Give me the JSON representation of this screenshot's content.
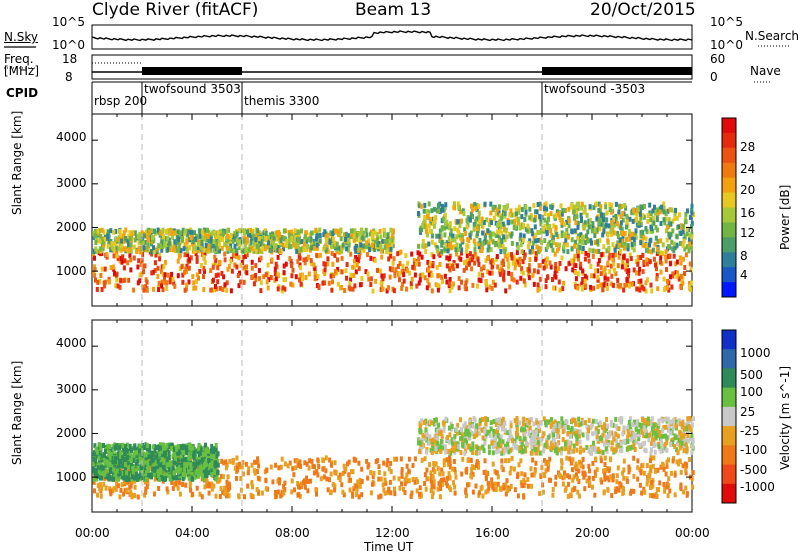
{
  "header": {
    "station": "Clyde River (fitACF)",
    "beam": "Beam 13",
    "date": "20/Oct/2015"
  },
  "status_panel": {
    "left_top_label": "N.Sky",
    "left_top_ticks": [
      "10^5",
      "10^0"
    ],
    "right_top_label": "N.Search",
    "right_top_ticks": [
      "10^5",
      "10^0"
    ],
    "freq_label_1": "Freq.",
    "freq_label_2": "[MHz]",
    "freq_ticks": [
      "18",
      "8"
    ],
    "nave_label": "Nave",
    "nave_ticks": [
      "60",
      "0"
    ],
    "cpid_label": "CPID",
    "cpid_entries": [
      {
        "name": "rbsp 200",
        "start_hour": 0
      },
      {
        "name": "twofsound 3503",
        "start_hour": 2
      },
      {
        "name": "themis 3300",
        "start_hour": 6
      },
      {
        "name": "twofsound -3503",
        "start_hour": 18
      }
    ]
  },
  "chart_data": [
    {
      "type": "heatmap",
      "title": "",
      "xlabel": "",
      "ylabel": "Slant Range [km]",
      "x_range_hours": [
        0,
        24
      ],
      "ylim": [
        200,
        4600
      ],
      "y_ticks": [
        "1000",
        "2000",
        "3000",
        "4000"
      ],
      "colorbar_label": "Power [dB]",
      "colorbar_ticks": [
        "4",
        "8",
        "12",
        "16",
        "20",
        "24",
        "28"
      ],
      "colorbar_colors": [
        "#0018ff",
        "#1a56c8",
        "#2f7f9a",
        "#4c9e68",
        "#73b544",
        "#a6c93a",
        "#e6c820",
        "#f3a20e",
        "#f07a10",
        "#ec5212",
        "#e62a0e",
        "#e00a0a"
      ],
      "echo_bands": [
        {
          "from_hour": 0,
          "to_hour": 24,
          "range_km": [
            600,
            1500
          ],
          "level": "high"
        },
        {
          "from_hour": 0,
          "to_hour": 12,
          "range_km": [
            1500,
            2000
          ],
          "level": "medium"
        },
        {
          "from_hour": 13,
          "to_hour": 24,
          "range_km": [
            1500,
            2600
          ],
          "level": "medium"
        }
      ]
    },
    {
      "type": "heatmap",
      "title": "",
      "xlabel": "Time UT",
      "ylabel": "Slant Range [km]",
      "x_range_hours": [
        0,
        24
      ],
      "x_ticks": [
        "00:00",
        "04:00",
        "08:00",
        "12:00",
        "16:00",
        "20:00",
        "00:00"
      ],
      "ylim": [
        200,
        4600
      ],
      "y_ticks": [
        "1000",
        "2000",
        "3000",
        "4000"
      ],
      "colorbar_label": "Velocity [m s^-1]",
      "colorbar_ticks": [
        "1000",
        "500",
        "100",
        "25",
        "-25",
        "-100",
        "-500",
        "-1000"
      ],
      "colorbar_colors": [
        "#1030c8",
        "#2e6aa8",
        "#2f8a5a",
        "#69c040",
        "#c8c8c8",
        "#e8a020",
        "#f07818",
        "#f04818",
        "#e00a0a"
      ],
      "echo_bands": [
        {
          "from_hour": 0,
          "to_hour": 24,
          "range_km": [
            600,
            1500
          ],
          "dominant": "negative"
        },
        {
          "from_hour": 0,
          "to_hour": 5,
          "range_km": [
            1000,
            1800
          ],
          "dominant": "positive"
        },
        {
          "from_hour": 13,
          "to_hour": 24,
          "range_km": [
            1600,
            2400
          ],
          "dominant": "near-zero"
        }
      ]
    }
  ]
}
